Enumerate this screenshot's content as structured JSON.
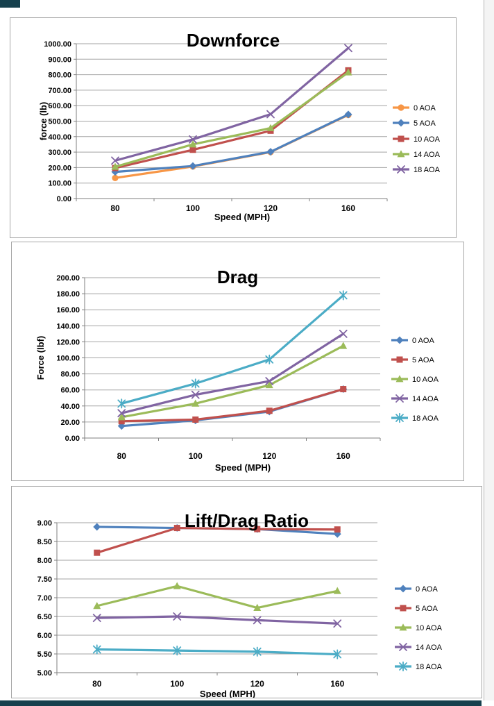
{
  "page": {
    "background": "#ffffff",
    "chart_border_color": "#a6a6a6",
    "gridline_color": "#a3a3a3",
    "axis_color": "#7f7f7f",
    "text_color": "#000000",
    "chrome_fragment_color": "#16404d",
    "boundary_line_color": "#b5b5b5"
  },
  "chart_data": [
    {
      "type": "line",
      "title": "Downforce",
      "xlabel": "Speed (MPH)",
      "ylabel": "force (lb)",
      "categories": [
        "80",
        "100",
        "120",
        "160"
      ],
      "ylim": [
        0,
        1000
      ],
      "ytick_step": 100,
      "ytick_format": "2dp",
      "grid": true,
      "legend_position": "right",
      "series": [
        {
          "name": "0 AOA",
          "color": "#F79646",
          "marker": "circle",
          "values": [
            133,
            207,
            300,
            540
          ]
        },
        {
          "name": "5 AOA",
          "color": "#4F81BD",
          "marker": "diamond",
          "values": [
            172,
            210,
            302,
            543
          ]
        },
        {
          "name": "10 AOA",
          "color": "#C0504D",
          "marker": "square",
          "values": [
            197,
            315,
            438,
            828
          ]
        },
        {
          "name": "14 AOA",
          "color": "#9BBB59",
          "marker": "triangle",
          "values": [
            205,
            350,
            455,
            815
          ]
        },
        {
          "name": "18 AOA",
          "color": "#8064A2",
          "marker": "x",
          "values": [
            245,
            382,
            545,
            972
          ]
        }
      ]
    },
    {
      "type": "line",
      "title": "Drag",
      "xlabel": "Speed (MPH)",
      "ylabel": "Force (lbf)",
      "categories": [
        "80",
        "100",
        "120",
        "160"
      ],
      "ylim": [
        0,
        200
      ],
      "ytick_step": 20,
      "ytick_format": "2dp",
      "grid": true,
      "legend_position": "right",
      "series": [
        {
          "name": "0 AOA",
          "color": "#4F81BD",
          "marker": "diamond",
          "values": [
            15,
            22,
            33,
            61
          ]
        },
        {
          "name": "5 AOA",
          "color": "#C0504D",
          "marker": "square",
          "values": [
            21,
            23,
            34,
            61
          ]
        },
        {
          "name": "10 AOA",
          "color": "#9BBB59",
          "marker": "triangle",
          "values": [
            26,
            43,
            66,
            115
          ]
        },
        {
          "name": "14 AOA",
          "color": "#8064A2",
          "marker": "x",
          "values": [
            31,
            54,
            71,
            130
          ]
        },
        {
          "name": "18 AOA",
          "color": "#4BACC6",
          "marker": "asterisk",
          "values": [
            43,
            68,
            98,
            178
          ]
        }
      ]
    },
    {
      "type": "line",
      "title": "Lift/Drag Ratio",
      "xlabel": "Speed (MPH)",
      "ylabel": "",
      "categories": [
        "80",
        "100",
        "120",
        "160"
      ],
      "ylim": [
        5,
        9
      ],
      "ytick_step": 0.5,
      "ytick_format": "2dp",
      "grid": true,
      "legend_position": "right",
      "series": [
        {
          "name": "0 AOA",
          "color": "#4F81BD",
          "marker": "diamond",
          "values": [
            8.89,
            8.86,
            8.83,
            8.7
          ]
        },
        {
          "name": "5 AOA",
          "color": "#C0504D",
          "marker": "square",
          "values": [
            8.2,
            8.86,
            8.83,
            8.82
          ]
        },
        {
          "name": "10 AOA",
          "color": "#9BBB59",
          "marker": "triangle",
          "values": [
            6.78,
            7.31,
            6.73,
            7.18
          ]
        },
        {
          "name": "14 AOA",
          "color": "#8064A2",
          "marker": "x",
          "values": [
            6.46,
            6.5,
            6.4,
            6.31
          ]
        },
        {
          "name": "18 AOA",
          "color": "#4BACC6",
          "marker": "asterisk",
          "values": [
            5.62,
            5.59,
            5.56,
            5.49
          ]
        }
      ]
    }
  ]
}
